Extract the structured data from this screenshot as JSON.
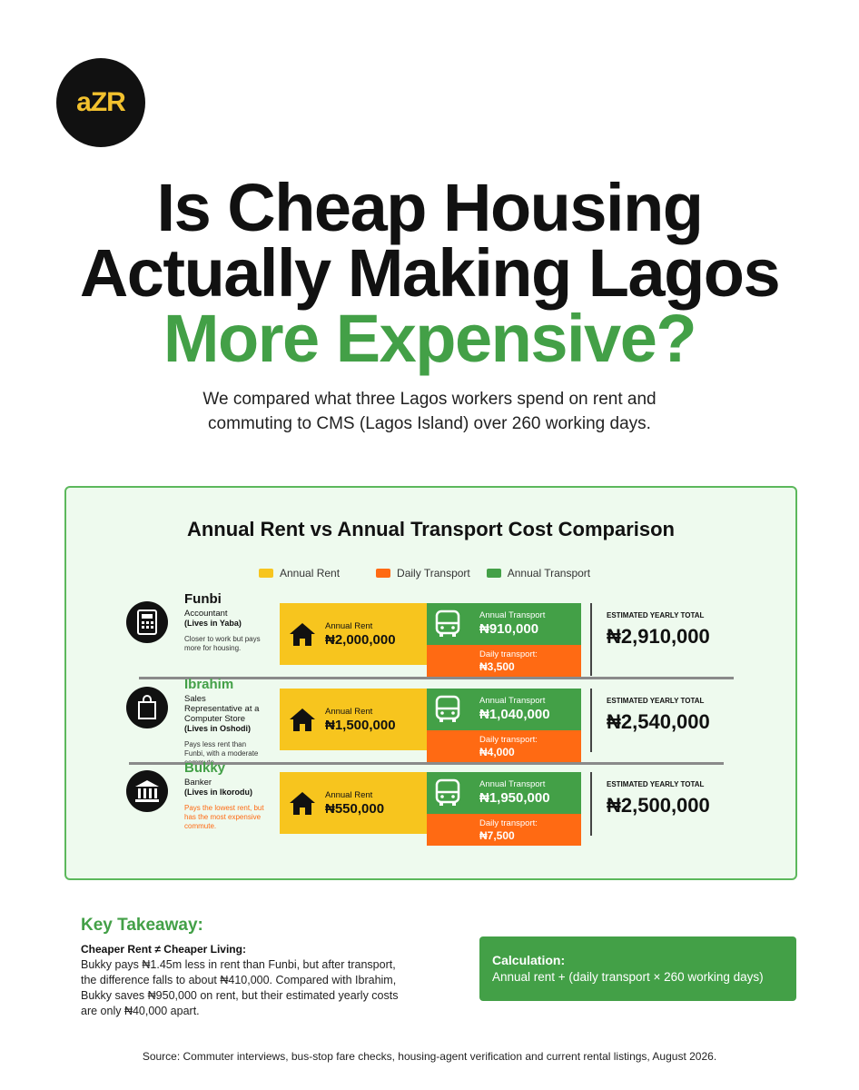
{
  "logo": "aZR",
  "title": {
    "line1": "Is Cheap Housing",
    "line2": "Actually Making Lagos",
    "highlight": "More Expensive?"
  },
  "subtitle": "We compared what three Lagos workers spend on rent and commuting to CMS (Lagos Island) over 260 working days.",
  "panel": {
    "title": "Annual Rent vs Annual Transport Cost Comparison",
    "legend": [
      "Annual Rent",
      "Daily Transport",
      "Annual Transport"
    ],
    "people": [
      {
        "name": "Funbi",
        "role": "Accountant",
        "residence": "(Lives in Yaba)",
        "note": "Closer to work but pays more for housing.",
        "rent_label": "Annual Rent",
        "rent": "₦2,000,000",
        "annual_transport_label": "Annual Transport",
        "annual_transport": "₦910,000",
        "daily_label": "Daily transport:",
        "daily": "₦3,500",
        "total_label": "ESTIMATED YEARLY TOTAL",
        "total": "₦2,910,000"
      },
      {
        "name": "Ibrahim",
        "role": "Sales Representative at a Computer Store",
        "residence": "(Lives in Oshodi)",
        "note": "Pays less rent than Funbi, with a moderate commute.",
        "rent_label": "Annual Rent",
        "rent": "₦1,500,000",
        "annual_transport_label": "Annual Transport",
        "annual_transport": "₦1,040,000",
        "daily_label": "Daily transport:",
        "daily": "₦4,000",
        "total_label": "ESTIMATED YEARLY TOTAL",
        "total": "₦2,540,000"
      },
      {
        "name": "Bukky",
        "role": "Banker",
        "residence": "(Lives in Ikorodu)",
        "note": "Pays the lowest rent, but has the most expensive commute.",
        "rent_label": "Annual Rent",
        "rent": "₦550,000",
        "annual_transport_label": "Annual Transport",
        "annual_transport": "₦1,950,000",
        "daily_label": "Daily transport:",
        "daily": "₦7,500",
        "total_label": "ESTIMATED YEARLY TOTAL",
        "total": "₦2,500,000"
      }
    ]
  },
  "takeaway": {
    "heading": "Key Takeaway:",
    "subheading": "Cheaper Rent ≠ Cheaper Living:",
    "body": "Bukky pays ₦1.45m less in rent than Funbi, but after transport, the difference falls to about ₦410,000. Compared with Ibrahim, Bukky saves ₦950,000 on rent, but their estimated yearly costs are only ₦40,000 apart."
  },
  "calculation": {
    "heading": "Calculation:",
    "formula": "Annual rent + (daily transport × 260 working days)"
  },
  "source": "Source: Commuter interviews, bus-stop fare checks, housing-agent verification and current rental listings, August 2026."
}
